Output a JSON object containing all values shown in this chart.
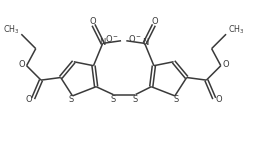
{
  "bg_color": "#ffffff",
  "line_color": "#3a3a3a",
  "text_color": "#3a3a3a",
  "linewidth": 1.1,
  "fontsize": 6.0,
  "figsize": [
    2.76,
    1.55
  ],
  "dpi": 100,
  "xlim": [
    0,
    10
  ],
  "ylim": [
    0,
    5.5
  ]
}
